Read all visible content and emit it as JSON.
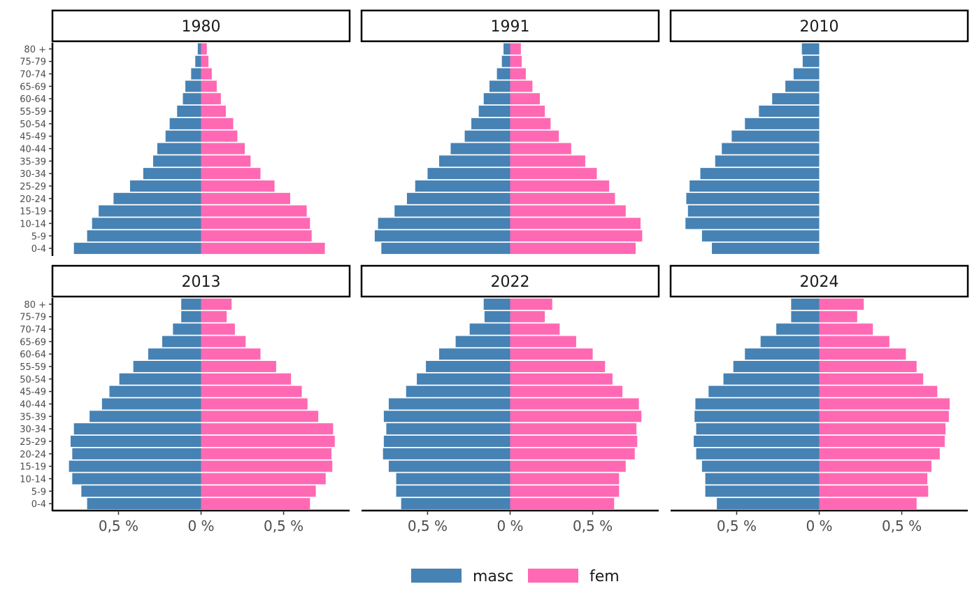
{
  "chart_data": {
    "type": "bar",
    "subtype": "population-pyramid",
    "layout": "facet-grid 2x3",
    "categories": [
      "0-4",
      "5-9",
      "10-14",
      "15-19",
      "20-24",
      "25-29",
      "30-34",
      "35-39",
      "40-44",
      "45-49",
      "50-54",
      "55-59",
      "60-64",
      "65-69",
      "70-74",
      "75-79",
      "80 +"
    ],
    "x_ticks": [
      "0,5 %",
      "0 %",
      "0,5 %"
    ],
    "xlim": [
      -0.9,
      0.9
    ],
    "tick_values": [
      -0.5,
      0,
      0.5
    ],
    "colors": {
      "masc": "#4682B4",
      "fem": "#FF69B4"
    },
    "legend": {
      "position": "bottom",
      "entries": [
        "masc",
        "fem"
      ]
    },
    "grid": false,
    "panels": [
      {
        "title": "1980",
        "masc": [
          0.77,
          0.69,
          0.66,
          0.62,
          0.53,
          0.43,
          0.35,
          0.29,
          0.265,
          0.215,
          0.19,
          0.145,
          0.11,
          0.095,
          0.06,
          0.035,
          0.02
        ],
        "fem": [
          0.75,
          0.67,
          0.66,
          0.64,
          0.54,
          0.445,
          0.36,
          0.3,
          0.265,
          0.22,
          0.195,
          0.15,
          0.12,
          0.095,
          0.065,
          0.045,
          0.035
        ]
      },
      {
        "title": "1991",
        "masc": [
          0.78,
          0.82,
          0.8,
          0.7,
          0.625,
          0.575,
          0.5,
          0.43,
          0.36,
          0.275,
          0.235,
          0.19,
          0.16,
          0.125,
          0.08,
          0.05,
          0.04
        ],
        "fem": [
          0.76,
          0.8,
          0.79,
          0.7,
          0.635,
          0.6,
          0.525,
          0.455,
          0.37,
          0.295,
          0.245,
          0.21,
          0.18,
          0.135,
          0.095,
          0.07,
          0.065
        ]
      },
      {
        "title": "2010",
        "masc": [
          0.65,
          0.71,
          0.81,
          0.795,
          0.805,
          0.785,
          0.72,
          0.63,
          0.59,
          0.53,
          0.45,
          0.365,
          0.285,
          0.205,
          0.155,
          0.1,
          0.105
        ]
      },
      {
        "title": "2013",
        "masc": [
          0.69,
          0.725,
          0.78,
          0.8,
          0.78,
          0.79,
          0.77,
          0.675,
          0.6,
          0.555,
          0.495,
          0.41,
          0.32,
          0.235,
          0.17,
          0.12,
          0.12
        ],
        "fem": [
          0.66,
          0.695,
          0.755,
          0.795,
          0.79,
          0.81,
          0.8,
          0.71,
          0.645,
          0.61,
          0.545,
          0.455,
          0.36,
          0.27,
          0.205,
          0.155,
          0.185
        ]
      },
      {
        "title": "2022",
        "masc": [
          0.66,
          0.69,
          0.69,
          0.735,
          0.77,
          0.765,
          0.75,
          0.765,
          0.735,
          0.63,
          0.565,
          0.51,
          0.43,
          0.33,
          0.245,
          0.155,
          0.16
        ],
        "fem": [
          0.63,
          0.66,
          0.66,
          0.7,
          0.755,
          0.77,
          0.765,
          0.795,
          0.78,
          0.68,
          0.62,
          0.575,
          0.5,
          0.4,
          0.3,
          0.21,
          0.255
        ]
      },
      {
        "title": "2024",
        "masc": [
          0.62,
          0.69,
          0.69,
          0.71,
          0.745,
          0.76,
          0.745,
          0.755,
          0.75,
          0.67,
          0.58,
          0.52,
          0.45,
          0.355,
          0.26,
          0.17,
          0.17
        ],
        "fem": [
          0.59,
          0.66,
          0.655,
          0.68,
          0.73,
          0.76,
          0.765,
          0.785,
          0.79,
          0.715,
          0.63,
          0.59,
          0.525,
          0.425,
          0.325,
          0.23,
          0.27
        ]
      }
    ]
  }
}
